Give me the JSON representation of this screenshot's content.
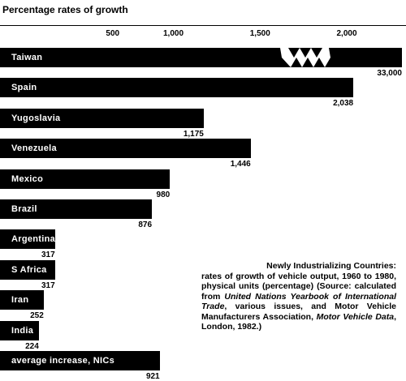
{
  "chart_data": {
    "type": "bar",
    "orientation": "horizontal",
    "title": "Percentage rates of growth",
    "x_ticks": [
      "500",
      "1,000",
      "1,500",
      "2,000"
    ],
    "x_tick_values": [
      500,
      1000,
      1500,
      2000
    ],
    "axis_break": true,
    "categories": [
      "Taiwan",
      "Spain",
      "Yugoslavia",
      "Venezuela",
      "Mexico",
      "Brazil",
      "Argentina",
      "S Africa",
      "Iran",
      "India",
      "average increase, NICs"
    ],
    "values": [
      33000,
      2038,
      1175,
      1446,
      980,
      876,
      317,
      317,
      252,
      224,
      921
    ],
    "value_labels": [
      "33,000",
      "2,038",
      "1,175",
      "1,446",
      "980",
      "876",
      "317",
      "317",
      "252",
      "224",
      "921"
    ]
  },
  "note": {
    "title": "Newly Industrializing Countries:",
    "line1": "rates of growth of vehicle output, 1960 to 1980, physical units (percentage)",
    "source_prefix": "(Source: calculated from ",
    "source_italic1": "United Nations Yearbook of International Trade",
    "source_mid": ", various issues, and Motor Vehicle Manufacturers Association, ",
    "source_italic2": "Motor Vehicle Data",
    "source_suffix": ", London, 1982.)"
  },
  "colors": {
    "bar": "#000000",
    "background": "#ffffff",
    "bar_text": "#ffffff"
  }
}
